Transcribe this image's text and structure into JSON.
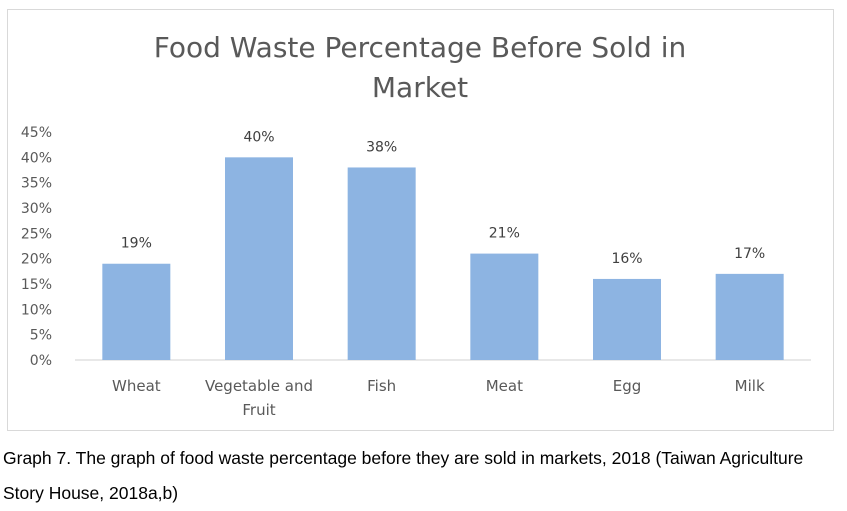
{
  "chart_data": {
    "type": "bar",
    "title": "Food Waste Percentage Before Sold in Market",
    "title_lines": [
      "Food Waste Percentage Before Sold in",
      "Market"
    ],
    "categories": [
      "Wheat",
      "Vegetable and Fruit",
      "Fish",
      "Meat",
      "Egg",
      "Milk"
    ],
    "category_lines": [
      [
        "Wheat"
      ],
      [
        "Vegetable and",
        "Fruit"
      ],
      [
        "Fish"
      ],
      [
        "Meat"
      ],
      [
        "Egg"
      ],
      [
        "Milk"
      ]
    ],
    "values": [
      19,
      40,
      38,
      21,
      16,
      17
    ],
    "data_labels": [
      "19%",
      "40%",
      "38%",
      "21%",
      "16%",
      "17%"
    ],
    "y_ticks": [
      "0%",
      "5%",
      "10%",
      "15%",
      "20%",
      "25%",
      "30%",
      "35%",
      "40%",
      "45%"
    ],
    "ylim": [
      0,
      45
    ],
    "xlabel": "",
    "ylabel": "",
    "grid": false,
    "bar_color": "#8db4e2"
  },
  "caption": "Graph 7. The graph of food waste percentage before they are sold in markets, 2018 (Taiwan Agriculture Story House, 2018a,b)"
}
